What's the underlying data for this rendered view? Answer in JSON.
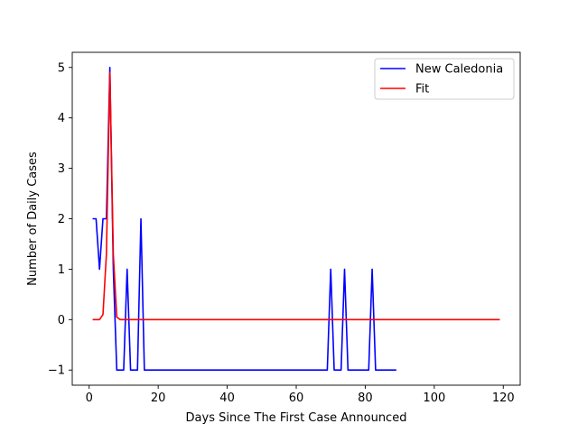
{
  "chart_data": {
    "type": "line",
    "title": "",
    "xlabel": "Days Since The First Case Announced",
    "ylabel": "Number of Daily Cases",
    "xlim": [
      -4.9,
      124.9
    ],
    "ylim": [
      -1.3,
      5.3
    ],
    "xticks": [
      0,
      20,
      40,
      60,
      80,
      100,
      120
    ],
    "yticks": [
      -1,
      0,
      1,
      2,
      3,
      4,
      5
    ],
    "grid": false,
    "legend_position": "top-right",
    "series": [
      {
        "name": "New Caledonia",
        "color": "#0000ff",
        "points": [
          [
            1,
            2
          ],
          [
            2,
            2
          ],
          [
            3,
            1
          ],
          [
            4,
            2
          ],
          [
            5,
            2
          ],
          [
            6,
            5
          ],
          [
            7,
            1
          ],
          [
            8,
            -1
          ],
          [
            9,
            -1
          ],
          [
            10,
            -1
          ],
          [
            11,
            1
          ],
          [
            12,
            -1
          ],
          [
            13,
            -1
          ],
          [
            14,
            -1
          ],
          [
            15,
            2
          ],
          [
            16,
            -1
          ],
          [
            17,
            -1
          ],
          [
            18,
            -1
          ],
          [
            19,
            -1
          ],
          [
            20,
            -1
          ],
          [
            30,
            -1
          ],
          [
            40,
            -1
          ],
          [
            50,
            -1
          ],
          [
            60,
            -1
          ],
          [
            69,
            -1
          ],
          [
            70,
            1
          ],
          [
            71,
            -1
          ],
          [
            72,
            -1
          ],
          [
            73,
            -1
          ],
          [
            74,
            1
          ],
          [
            75,
            -1
          ],
          [
            76,
            -1
          ],
          [
            80,
            -1
          ],
          [
            81,
            -1
          ],
          [
            82,
            1
          ],
          [
            83,
            -1
          ],
          [
            84,
            -1
          ],
          [
            85,
            -1
          ],
          [
            89,
            -1
          ]
        ]
      },
      {
        "name": "Fit",
        "color": "#ff0000",
        "points": [
          [
            1,
            0
          ],
          [
            2,
            0
          ],
          [
            3,
            0
          ],
          [
            4,
            0.1
          ],
          [
            5,
            1.3
          ],
          [
            6,
            4.9
          ],
          [
            7,
            1.3
          ],
          [
            8,
            0.05
          ],
          [
            9,
            0
          ],
          [
            10,
            0
          ],
          [
            20,
            0
          ],
          [
            40,
            0
          ],
          [
            60,
            0
          ],
          [
            80,
            0
          ],
          [
            100,
            0
          ],
          [
            119,
            0
          ]
        ]
      }
    ]
  }
}
